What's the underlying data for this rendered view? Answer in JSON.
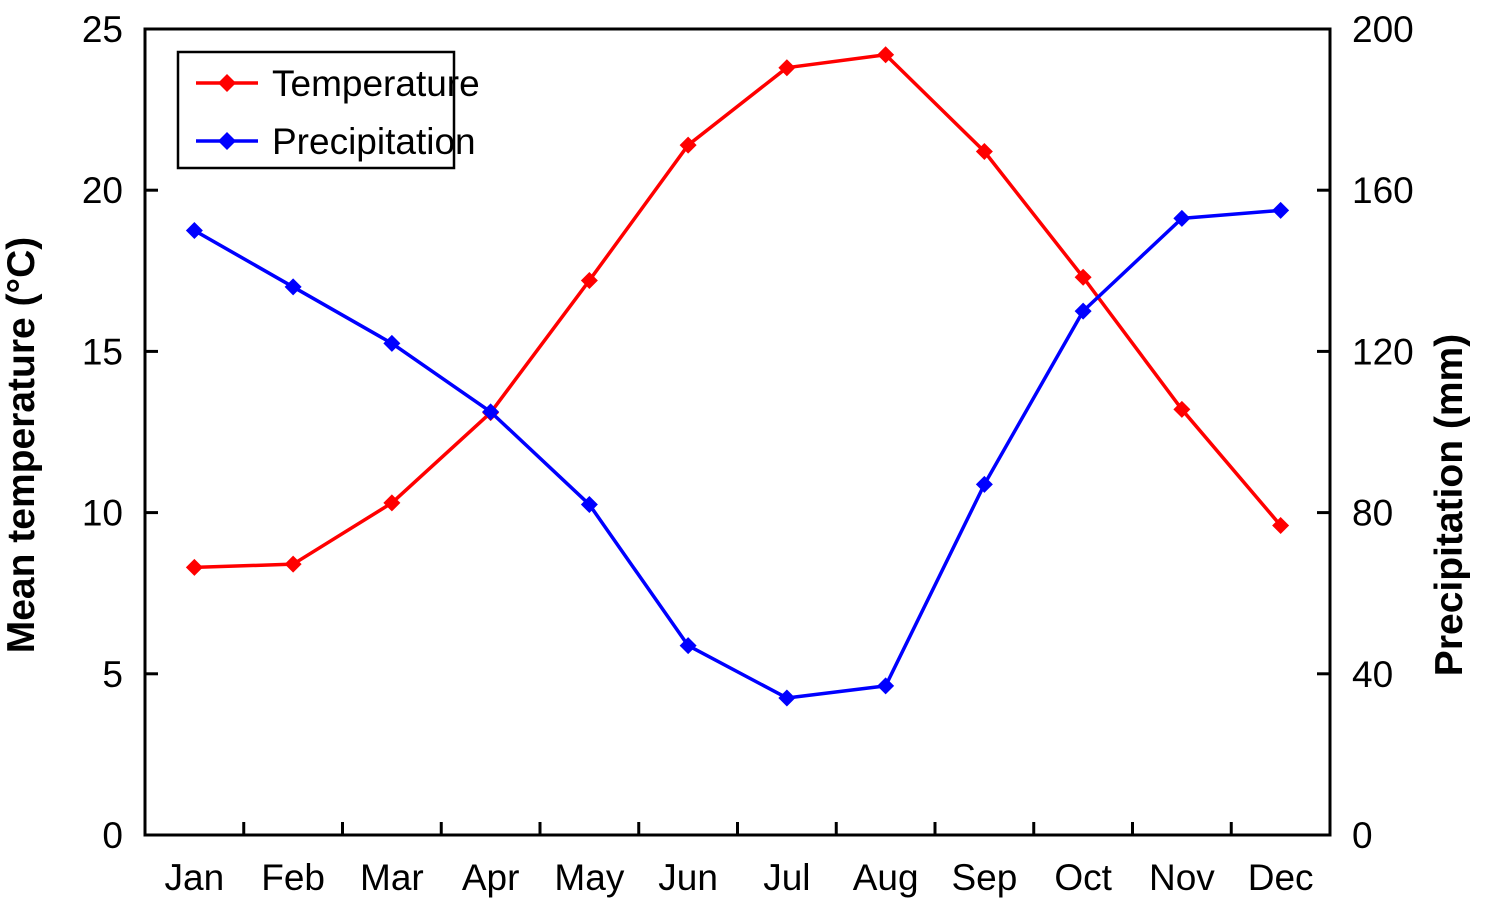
{
  "chart_data": {
    "type": "line",
    "title": "",
    "categories": [
      "Jan",
      "Feb",
      "Mar",
      "Apr",
      "May",
      "Jun",
      "Jul",
      "Aug",
      "Sep",
      "Oct",
      "Nov",
      "Dec"
    ],
    "series": [
      {
        "name": "Temperature",
        "axis": "left",
        "color": "#FF0000",
        "marker": "diamond",
        "values": [
          8.3,
          8.4,
          10.3,
          13.1,
          17.2,
          21.4,
          23.8,
          24.2,
          21.2,
          17.3,
          13.2,
          9.6
        ]
      },
      {
        "name": "Precipitation",
        "axis": "right",
        "color": "#0000FF",
        "marker": "diamond",
        "values": [
          150,
          136,
          122,
          105,
          82,
          47,
          34,
          37,
          87,
          130,
          153,
          155
        ]
      }
    ],
    "left_axis": {
      "label": "Mean temperature (°C)",
      "min": 0,
      "max": 25,
      "ticks": [
        0,
        5,
        10,
        15,
        20,
        25
      ]
    },
    "right_axis": {
      "label": "Precipitation (mm)",
      "min": 0,
      "max": 200,
      "ticks": [
        0,
        40,
        80,
        120,
        160,
        200
      ]
    },
    "xlabel": "",
    "grid": false,
    "legend": {
      "position": "top-left",
      "entries": [
        "Temperature",
        "Precipitation"
      ]
    }
  },
  "colors": {
    "background": "#FFFFFF",
    "axis": "#000000",
    "text": "#000000",
    "temperature": "#FF0000",
    "precipitation": "#0000FF"
  }
}
